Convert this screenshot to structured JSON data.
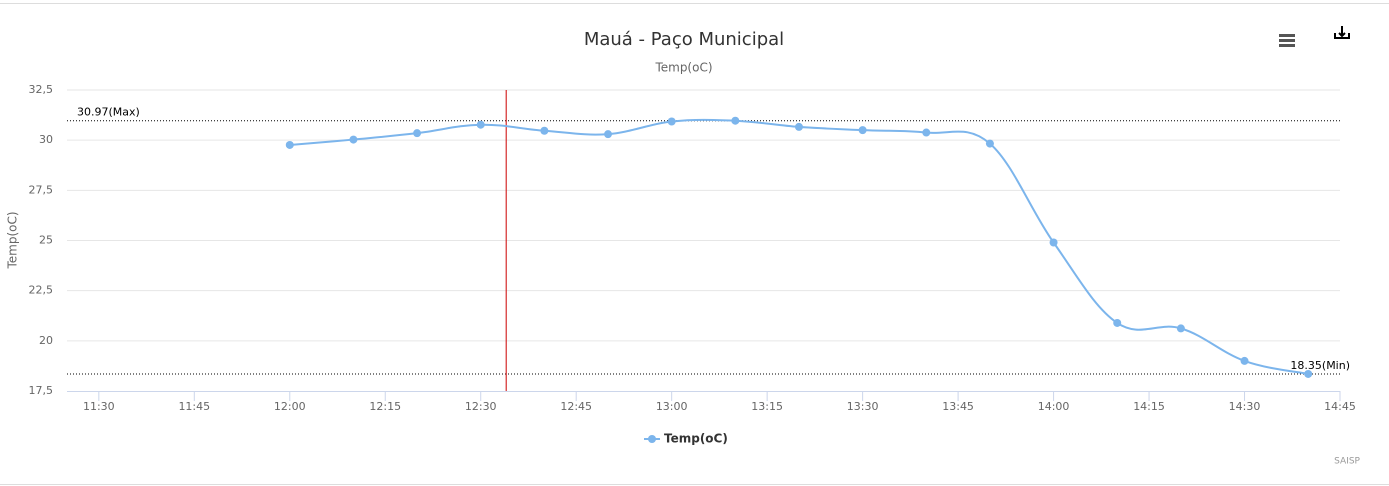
{
  "chart_data": {
    "type": "line",
    "title": "Mauá - Paço Municipal",
    "subtitle": "Temp(oC)",
    "y_label": "Temp(oC)",
    "credits": "SAISP",
    "x": [
      "12:00",
      "12:10",
      "12:20",
      "12:30",
      "12:40",
      "12:50",
      "13:00",
      "13:10",
      "13:20",
      "13:30",
      "13:40",
      "13:50",
      "14:00",
      "14:10",
      "14:20",
      "14:30",
      "14:40"
    ],
    "series": [
      {
        "name": "Temp(oC)",
        "color": "#7cb5ec",
        "values": [
          29.76,
          30.03,
          30.35,
          30.77,
          30.47,
          30.3,
          30.93,
          30.97,
          30.66,
          30.5,
          30.38,
          29.83,
          24.9,
          20.89,
          20.62,
          19.0,
          18.35
        ]
      }
    ],
    "xlim": [
      "11:25",
      "14:45"
    ],
    "xticks": [
      "11:30",
      "11:45",
      "12:00",
      "12:15",
      "12:30",
      "12:45",
      "13:00",
      "13:15",
      "13:30",
      "13:45",
      "14:00",
      "14:15",
      "14:30",
      "14:45"
    ],
    "ylim": [
      17.5,
      32.5
    ],
    "yticks": [
      {
        "value": 17.5,
        "label": "17,5"
      },
      20,
      {
        "value": 22.5,
        "label": "22,5"
      },
      25,
      {
        "value": 27.5,
        "label": "27,5"
      },
      30,
      {
        "value": 32.5,
        "label": "32,5"
      }
    ],
    "grid": true,
    "plot_lines": [
      {
        "value": 30.97,
        "label": "30.97(Max)"
      },
      {
        "value": 18.35,
        "label": "18.35(Min)"
      }
    ],
    "x_marker": {
      "x": "12:34",
      "color": "#cc0000"
    }
  }
}
